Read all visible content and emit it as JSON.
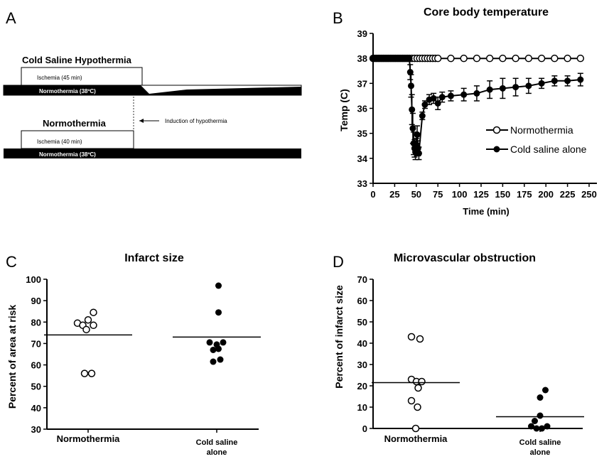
{
  "panels": {
    "a": {
      "letter": "A",
      "cold_saline_title": "Cold Saline Hypothermia",
      "normothermia_title": "Normothermia",
      "ischemia_45": "Ischemia (45 min)",
      "ischemia_40": "Ischemia (40 min)",
      "normo_bar_label": "Normothermia (38ºC)",
      "normo_bar_label_2": "Normothermia (38ºC)",
      "induction_label": "Induction of hypothermia"
    },
    "b": {
      "letter": "B"
    },
    "c": {
      "letter": "C"
    },
    "d": {
      "letter": "D"
    }
  },
  "chart_data": [
    {
      "id": "core_temp",
      "type": "line",
      "title": "Core body temperature",
      "xlabel": "Time (min)",
      "ylabel": "Temp (C)",
      "xlim": [
        0,
        250
      ],
      "ylim": [
        33,
        39
      ],
      "x_ticks": [
        0,
        25,
        50,
        75,
        100,
        125,
        150,
        175,
        200,
        225,
        250
      ],
      "y_ticks": [
        33,
        34,
        35,
        36,
        37,
        38,
        39
      ],
      "legend_position": "right",
      "series": [
        {
          "name": "Normothermia",
          "marker": "open-circle",
          "x": [
            0,
            2,
            4,
            6,
            8,
            10,
            12,
            14,
            16,
            18,
            20,
            22,
            24,
            26,
            28,
            30,
            32,
            34,
            36,
            38,
            40,
            42,
            45,
            48,
            51,
            54,
            57,
            60,
            63,
            66,
            69,
            72,
            75,
            90,
            105,
            120,
            135,
            150,
            165,
            180,
            195,
            210,
            225,
            240
          ],
          "y": [
            38,
            38,
            38,
            38,
            38,
            38,
            38,
            38,
            38,
            38,
            38,
            38,
            38,
            38,
            38,
            38,
            38,
            38,
            38,
            38,
            38,
            38,
            38,
            38,
            38,
            38,
            38,
            38,
            38,
            38,
            38,
            38,
            38,
            38,
            38,
            38,
            38,
            38,
            38,
            38,
            38,
            38,
            38,
            38
          ],
          "err": []
        },
        {
          "name": "Cold saline alone",
          "marker": "filled-circle",
          "x": [
            0,
            2,
            4,
            6,
            8,
            10,
            12,
            14,
            16,
            18,
            20,
            22,
            24,
            26,
            28,
            30,
            32,
            34,
            36,
            38,
            40,
            42,
            43,
            44,
            45,
            46,
            47,
            48,
            49,
            50,
            51,
            52,
            53,
            57,
            60,
            65,
            70,
            75,
            80,
            90,
            105,
            120,
            135,
            150,
            165,
            180,
            195,
            210,
            225,
            240
          ],
          "y": [
            38,
            38,
            38,
            38,
            38,
            38,
            38,
            38,
            38,
            38,
            38,
            38,
            38,
            38,
            38,
            38,
            38,
            38,
            38,
            38,
            38,
            38,
            37.45,
            36.9,
            35.95,
            35.2,
            34.6,
            34.4,
            34.25,
            34.5,
            34.95,
            34.4,
            34.2,
            35.7,
            36.15,
            36.35,
            36.4,
            36.2,
            36.45,
            36.5,
            36.55,
            36.6,
            36.75,
            36.8,
            36.85,
            36.9,
            37.0,
            37.1,
            37.1,
            37.15
          ],
          "err": [
            0,
            0,
            0,
            0,
            0,
            0,
            0,
            0,
            0,
            0,
            0,
            0,
            0,
            0,
            0,
            0,
            0,
            0,
            0,
            0,
            0,
            0,
            0.3,
            0.45,
            0.6,
            0.6,
            0.45,
            0.35,
            0.3,
            0.3,
            0.35,
            0.3,
            0.25,
            0.15,
            0.15,
            0.2,
            0.2,
            0.25,
            0.2,
            0.2,
            0.25,
            0.3,
            0.35,
            0.4,
            0.35,
            0.3,
            0.2,
            0.2,
            0.2,
            0.25
          ]
        }
      ]
    },
    {
      "id": "infarct_size",
      "type": "scatter",
      "title": "Infarct size",
      "xlabel": "",
      "ylabel": "Percent of area at risk",
      "ylim": [
        30,
        100
      ],
      "y_ticks": [
        30,
        40,
        50,
        60,
        70,
        80,
        90,
        100
      ],
      "categories": [
        "Normothermia",
        "Cold saline alone"
      ],
      "groups": [
        {
          "name": "Normothermia",
          "marker": "open-circle",
          "points": [
            [
              -0.3,
              79.5
            ],
            [
              -0.15,
              78.5
            ],
            [
              0.0,
              81
            ],
            [
              0.15,
              84.5
            ],
            [
              -0.05,
              76.5
            ],
            [
              0.15,
              78.5
            ],
            [
              -0.1,
              56
            ],
            [
              0.1,
              56
            ]
          ],
          "mean": 74
        },
        {
          "name": "Cold saline alone",
          "marker": "filled-circle",
          "points": [
            [
              0.05,
              97
            ],
            [
              0.05,
              84.5
            ],
            [
              -0.2,
              70.5
            ],
            [
              0.0,
              69.5
            ],
            [
              0.18,
              70.5
            ],
            [
              -0.1,
              67
            ],
            [
              0.05,
              67.5
            ],
            [
              -0.1,
              61.5
            ],
            [
              0.1,
              62.5
            ]
          ],
          "mean": 73
        }
      ]
    },
    {
      "id": "mvo",
      "type": "scatter",
      "title": "Microvascular obstruction",
      "xlabel": "",
      "ylabel": "Percent of infarct size",
      "ylim": [
        0,
        70
      ],
      "y_ticks": [
        0,
        10,
        20,
        30,
        40,
        50,
        60,
        70
      ],
      "categories": [
        "Normothermia",
        "Cold saline alone"
      ],
      "groups": [
        {
          "name": "Normothermia",
          "marker": "open-circle",
          "points": [
            [
              -0.12,
              43
            ],
            [
              0.12,
              42
            ],
            [
              -0.12,
              23
            ],
            [
              0.02,
              22
            ],
            [
              0.17,
              22
            ],
            [
              0.07,
              19
            ],
            [
              -0.12,
              13
            ],
            [
              0.05,
              10
            ],
            [
              0.0,
              0
            ]
          ],
          "mean": 21.5
        },
        {
          "name": "Cold saline alone",
          "marker": "filled-circle",
          "points": [
            [
              0.15,
              18
            ],
            [
              0.0,
              14.5
            ],
            [
              0.0,
              6
            ],
            [
              -0.15,
              3.5
            ],
            [
              -0.25,
              1
            ],
            [
              -0.1,
              0
            ],
            [
              0.05,
              0
            ],
            [
              0.2,
              1
            ]
          ],
          "mean": 5.5
        }
      ]
    }
  ],
  "category_labels": {
    "c": {
      "left": "Normothermia",
      "right_line1": "Cold saline",
      "right_line2": "alone"
    },
    "d": {
      "left": "Normothermia",
      "right_line1": "Cold saline",
      "right_line2": "alone"
    }
  }
}
